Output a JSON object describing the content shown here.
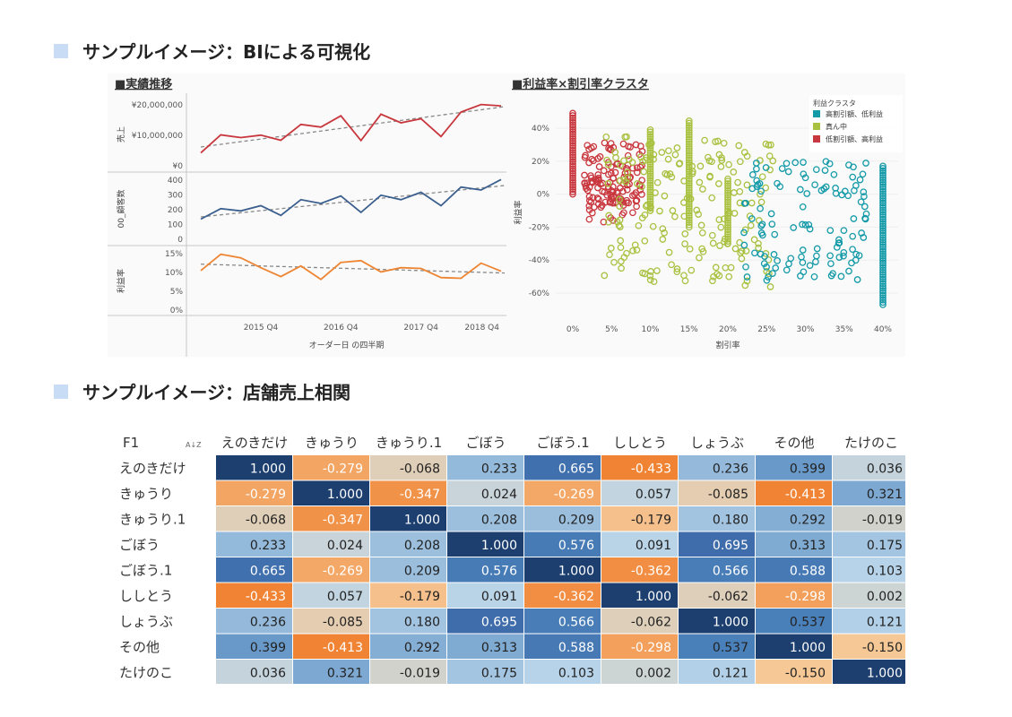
{
  "headings": {
    "bi": "サンプルイメージ：BIによる可視化",
    "heatmap": "サンプルイメージ：店舗売上相関"
  },
  "chart_data": [
    {
      "type": "line",
      "title": "■実績推移",
      "xlabel": "オーダー日 の四半期",
      "x_ticks": [
        "2015 Q4",
        "2016 Q4",
        "2017 Q4",
        "2018 Q4"
      ],
      "panels": [
        {
          "name": "売上",
          "ylabel": "売上",
          "y_ticks": [
            "¥20,000,000",
            "¥10,000,000",
            "¥0"
          ],
          "ylim": [
            0,
            24000000
          ],
          "color": "#c9373e",
          "values": [
            4800000,
            11500000,
            10500000,
            11400000,
            9500000,
            15400000,
            14400000,
            18600000,
            9400000,
            19200000,
            16000000,
            17500000,
            10900000,
            20000000,
            22800000,
            22300000
          ],
          "trend": [
            7000000,
            22000000
          ]
        },
        {
          "name": "00_顧客数",
          "ylabel": "00_顧客数",
          "y_ticks": [
            "400",
            "300",
            "200",
            "100",
            "0"
          ],
          "ylim": [
            0,
            420
          ],
          "color": "#3b5f8e",
          "values": [
            135,
            205,
            190,
            225,
            160,
            265,
            240,
            290,
            180,
            295,
            265,
            315,
            225,
            350,
            330,
            400
          ],
          "trend": [
            150,
            360
          ]
        },
        {
          "name": "利益率",
          "ylabel": "利益率",
          "y_ticks": [
            "15%",
            "10%",
            "5%",
            "0%"
          ],
          "ylim": [
            0,
            17
          ],
          "color": "#ee8533",
          "values": [
            11.2,
            15.8,
            14.8,
            12.0,
            9.5,
            12.5,
            8.7,
            13.5,
            14.0,
            10.8,
            12.0,
            11.8,
            9.2,
            9.0,
            13.3,
            11.0
          ],
          "trend": [
            13.0,
            10.5
          ]
        }
      ]
    },
    {
      "type": "scatter",
      "title": "■利益率×割引率クラスタ",
      "xlabel": "割引率",
      "ylabel": "利益率",
      "x_ticks": [
        "0%",
        "5%",
        "10%",
        "15%",
        "20%",
        "25%",
        "30%",
        "35%",
        "40%"
      ],
      "y_ticks": [
        "40%",
        "20%",
        "0%",
        "-20%",
        "-40%",
        "-60%"
      ],
      "xlim": [
        -2,
        42
      ],
      "ylim": [
        -70,
        52
      ],
      "legend_title": "利益クラスタ",
      "legend_position": "top-right",
      "series": [
        {
          "name": "高割引額、低利益",
          "color": "#149aa8"
        },
        {
          "name": "真ん中",
          "color": "#a9c140"
        },
        {
          "name": "低割引額、高利益",
          "color": "#c9373e"
        }
      ]
    },
    {
      "type": "heatmap",
      "corner_label": "F1",
      "sort_icon": "A↓Z",
      "columns": [
        "えのきだけ",
        "きゅうり",
        "きゅうり.1",
        "ごぼう",
        "ごぼう.1",
        "ししとう",
        "しょうぶ",
        "その他",
        "たけのこ"
      ],
      "rows": [
        "えのきだけ",
        "きゅうり",
        "きゅうり.1",
        "ごぼう",
        "ごぼう.1",
        "ししとう",
        "しょうぶ",
        "その他",
        "たけのこ"
      ],
      "values": [
        [
          "1.000",
          "-0.279",
          "-0.068",
          "0.233",
          "0.665",
          "-0.433",
          "0.236",
          "0.399",
          "0.036"
        ],
        [
          "-0.279",
          "1.000",
          "-0.347",
          "0.024",
          "-0.269",
          "0.057",
          "-0.085",
          "-0.413",
          "0.321"
        ],
        [
          "-0.068",
          "-0.347",
          "1.000",
          "0.208",
          "0.209",
          "-0.179",
          "0.180",
          "0.292",
          "-0.019"
        ],
        [
          "0.233",
          "0.024",
          "0.208",
          "1.000",
          "0.576",
          "0.091",
          "0.695",
          "0.313",
          "0.175"
        ],
        [
          "0.665",
          "-0.269",
          "0.209",
          "0.576",
          "1.000",
          "-0.362",
          "0.566",
          "0.588",
          "0.103"
        ],
        [
          "-0.433",
          "0.057",
          "-0.179",
          "0.091",
          "-0.362",
          "1.000",
          "-0.062",
          "-0.298",
          "0.002"
        ],
        [
          "0.236",
          "-0.085",
          "0.180",
          "0.695",
          "0.566",
          "-0.062",
          "1.000",
          "0.537",
          "0.121"
        ],
        [
          "0.399",
          "-0.413",
          "0.292",
          "0.313",
          "0.588",
          "-0.298",
          "0.537",
          "1.000",
          "-0.150"
        ],
        [
          "0.036",
          "0.321",
          "-0.019",
          "0.175",
          "0.103",
          "0.002",
          "0.121",
          "-0.150",
          "1.000"
        ]
      ]
    }
  ]
}
